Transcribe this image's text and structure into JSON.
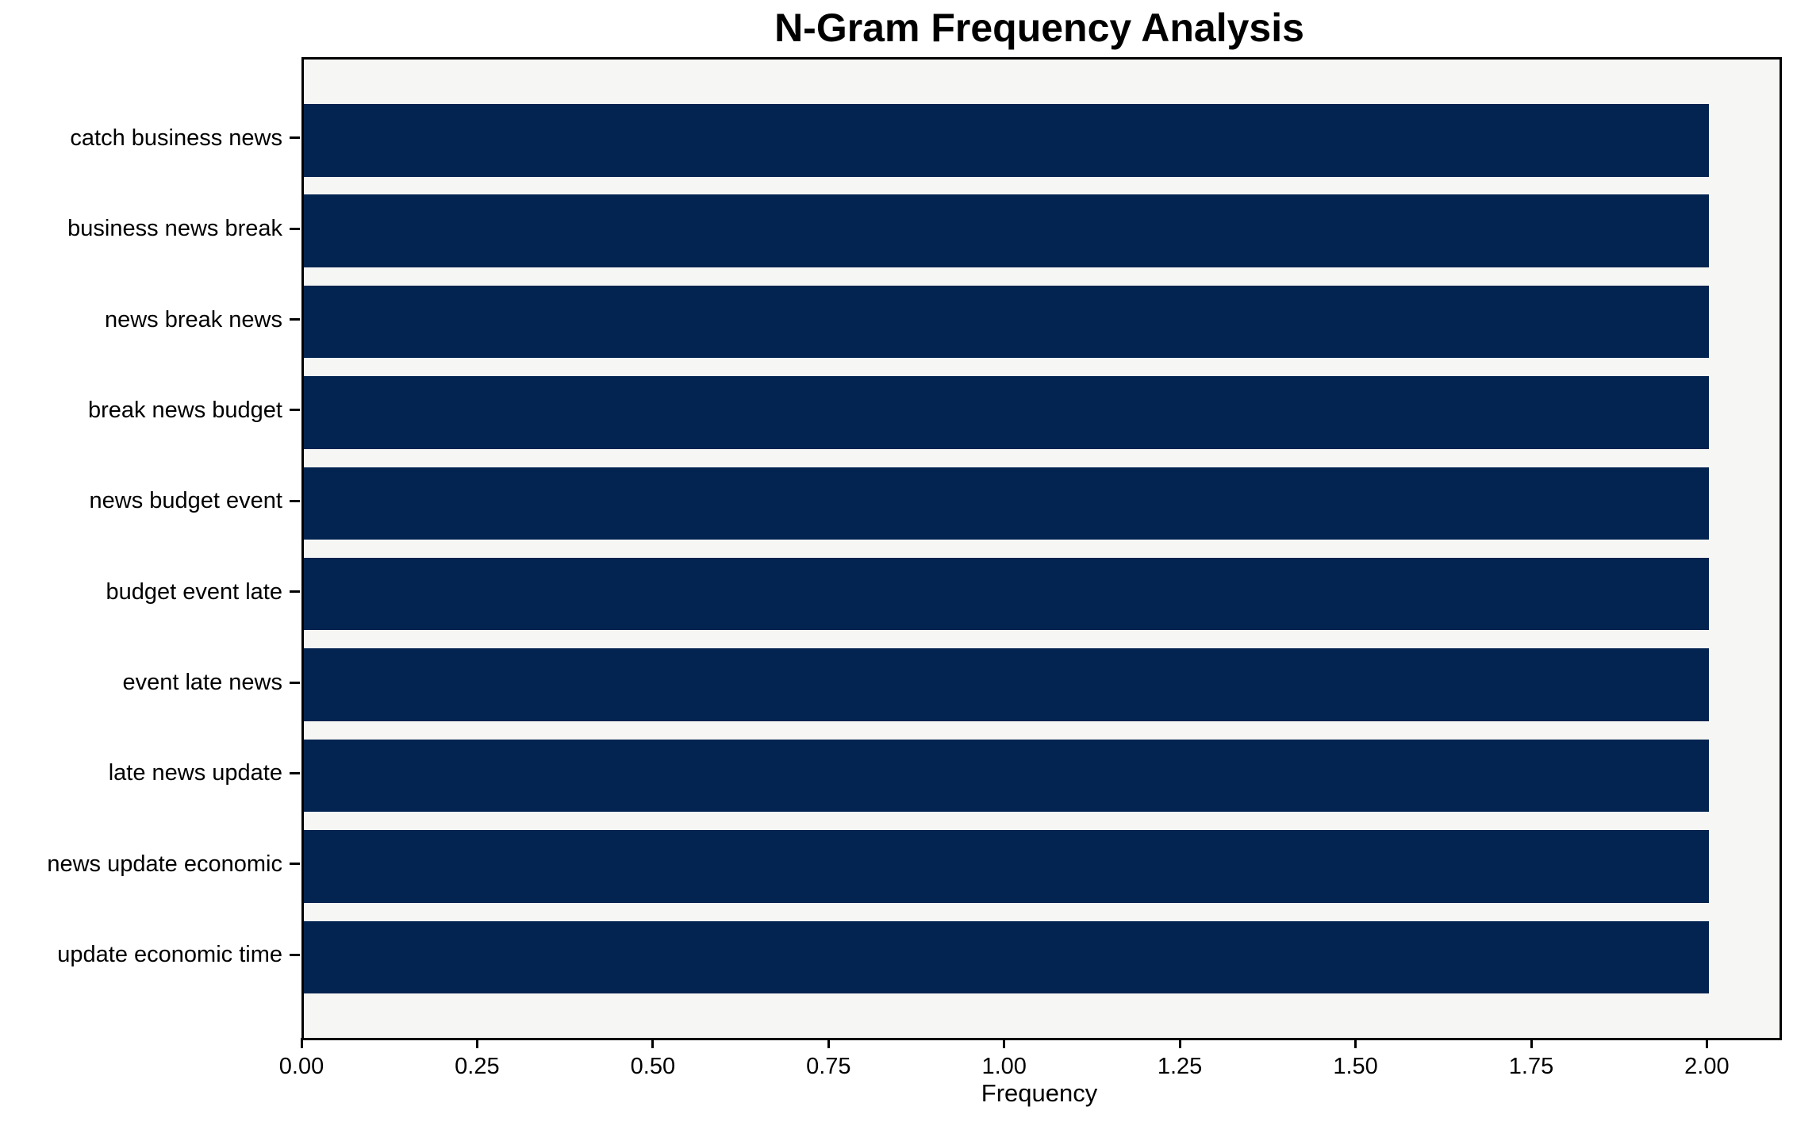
{
  "chart_data": {
    "type": "bar",
    "orientation": "horizontal",
    "title": "N-Gram Frequency Analysis",
    "categories": [
      "catch business news",
      "business news break",
      "news break news",
      "break news budget",
      "news budget event",
      "budget event late",
      "event late news",
      "late news update",
      "news update economic",
      "update economic time"
    ],
    "values": [
      2,
      2,
      2,
      2,
      2,
      2,
      2,
      2,
      2,
      2
    ],
    "xlabel": "Frequency",
    "ylabel": "",
    "xlim": [
      0,
      2.1
    ],
    "xticks": [
      0.0,
      0.25,
      0.5,
      0.75,
      1.0,
      1.25,
      1.5,
      1.75,
      2.0
    ],
    "xtick_labels": [
      "0.00",
      "0.25",
      "0.50",
      "0.75",
      "1.00",
      "1.25",
      "1.50",
      "1.75",
      "2.00"
    ],
    "grid": false,
    "legend_position": "none",
    "bar_color": "#032450",
    "plot_background_color": "#f6f6f4",
    "figure_background_color": "#ffffff",
    "axis_color": "#000000"
  }
}
